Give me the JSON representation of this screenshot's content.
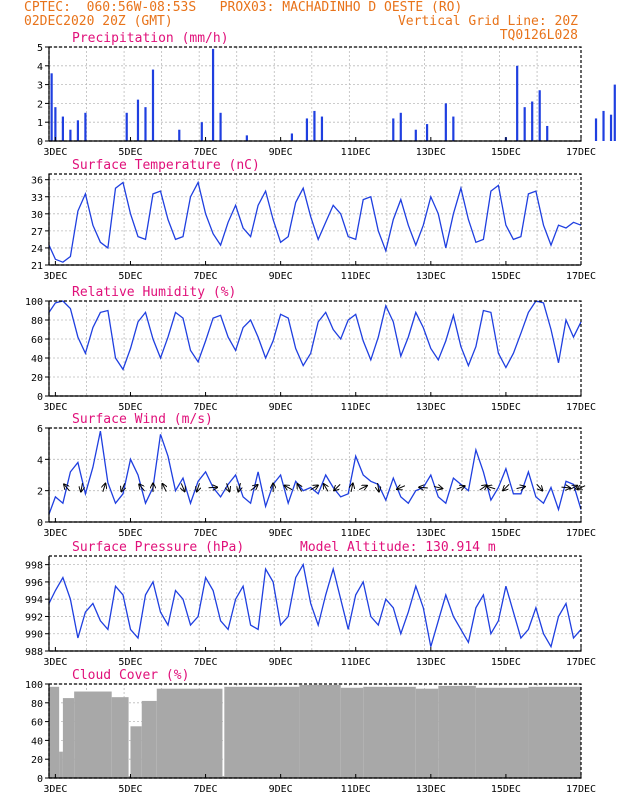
{
  "header": {
    "line1_left": "CPTEC:  060:56W-08:53S   PROX03: MACHADINHO D OESTE (RO)",
    "line2_left": "02DEC2020 20Z (GMT)",
    "line2_right": "Vertical Grid Line: 20Z",
    "line3_right": "TQ0126L028"
  },
  "colors": {
    "header": "#e8731a",
    "title": "#e0107a",
    "series": "#1f3fe0",
    "cloud": "#a8a8a8",
    "grid": "#bbbbbb"
  },
  "x_tick_labels": [
    "3DEC",
    "5DEC",
    "7DEC",
    "9DEC",
    "11DEC",
    "13DEC",
    "15DEC",
    "17DEC"
  ],
  "chart_data": [
    {
      "type": "bar",
      "title": "Precipitation (mm/h)",
      "ylim": [
        0,
        5
      ],
      "yticks": [
        "0",
        "1",
        "2",
        "3",
        "4",
        "5"
      ],
      "x_range": [
        "02DEC2020 20Z",
        "17DEC2020 00Z"
      ],
      "events": [
        {
          "day": 2.9,
          "value": 3.6
        },
        {
          "day": 3.0,
          "value": 1.8
        },
        {
          "day": 3.2,
          "value": 1.3
        },
        {
          "day": 3.4,
          "value": 0.6
        },
        {
          "day": 3.6,
          "value": 1.1
        },
        {
          "day": 3.8,
          "value": 1.5
        },
        {
          "day": 4.9,
          "value": 1.5
        },
        {
          "day": 5.2,
          "value": 2.2
        },
        {
          "day": 5.4,
          "value": 1.8
        },
        {
          "day": 5.6,
          "value": 3.8
        },
        {
          "day": 6.3,
          "value": 0.6
        },
        {
          "day": 6.9,
          "value": 1.0
        },
        {
          "day": 7.2,
          "value": 4.9
        },
        {
          "day": 7.4,
          "value": 1.5
        },
        {
          "day": 8.1,
          "value": 0.3
        },
        {
          "day": 9.3,
          "value": 0.4
        },
        {
          "day": 9.7,
          "value": 1.2
        },
        {
          "day": 9.9,
          "value": 1.6
        },
        {
          "day": 10.1,
          "value": 1.3
        },
        {
          "day": 12.0,
          "value": 1.2
        },
        {
          "day": 12.2,
          "value": 1.5
        },
        {
          "day": 12.6,
          "value": 0.6
        },
        {
          "day": 12.9,
          "value": 0.9
        },
        {
          "day": 13.4,
          "value": 2.0
        },
        {
          "day": 13.6,
          "value": 1.3
        },
        {
          "day": 15.0,
          "value": 0.2
        },
        {
          "day": 15.3,
          "value": 4.0
        },
        {
          "day": 15.5,
          "value": 1.8
        },
        {
          "day": 15.7,
          "value": 2.1
        },
        {
          "day": 15.9,
          "value": 2.7
        },
        {
          "day": 16.1,
          "value": 0.8
        },
        {
          "day": 17.4,
          "value": 1.2
        },
        {
          "day": 17.6,
          "value": 1.6
        },
        {
          "day": 17.8,
          "value": 1.4
        },
        {
          "day": 17.9,
          "value": 3.0
        }
      ]
    },
    {
      "type": "line",
      "title": "Surface Temperature (nC)",
      "ylim": [
        21,
        37
      ],
      "yticks": [
        "21",
        "24",
        "27",
        "30",
        "33",
        "36"
      ],
      "x": [
        2.83,
        3.0,
        3.2,
        3.4,
        3.6,
        3.8,
        4.0,
        4.2,
        4.4,
        4.6,
        4.8,
        5.0,
        5.2,
        5.4,
        5.6,
        5.8,
        6.0,
        6.2,
        6.4,
        6.6,
        6.8,
        7.0,
        7.2,
        7.4,
        7.6,
        7.8,
        8.0,
        8.2,
        8.4,
        8.6,
        8.8,
        9.0,
        9.2,
        9.4,
        9.6,
        9.8,
        10.0,
        10.2,
        10.4,
        10.6,
        10.8,
        11.0,
        11.2,
        11.4,
        11.6,
        11.8,
        12.0,
        12.2,
        12.4,
        12.6,
        12.8,
        13.0,
        13.2,
        13.4,
        13.6,
        13.8,
        14.0,
        14.2,
        14.4,
        14.6,
        14.8,
        15.0,
        15.2,
        15.4,
        15.6,
        15.8,
        16.0,
        16.2,
        16.4,
        16.6,
        16.8,
        17.0
      ],
      "series": [
        {
          "values": [
            24.5,
            22.0,
            21.5,
            22.5,
            30.5,
            33.5,
            28.0,
            25.0,
            24.0,
            34.5,
            35.5,
            30.0,
            26.0,
            25.5,
            33.5,
            34.0,
            29.0,
            25.5,
            26.0,
            33.0,
            35.5,
            30.0,
            26.5,
            24.5,
            28.5,
            31.5,
            27.5,
            26.0,
            31.5,
            34.0,
            29.0,
            25.0,
            26.0,
            32.0,
            34.5,
            29.5,
            25.5,
            28.5,
            31.5,
            30.0,
            26.0,
            25.5,
            32.5,
            33.0,
            27.0,
            23.5,
            29.0,
            32.5,
            28.0,
            24.5,
            28.0,
            33.0,
            30.0,
            24.0,
            30.0,
            34.5,
            29.0,
            25.0,
            25.5,
            34.0,
            35.0,
            28.0,
            25.5,
            26.0,
            33.5,
            34.0,
            28.0,
            24.5,
            28.0,
            27.5,
            28.5,
            28.0
          ]
        }
      ]
    },
    {
      "type": "line",
      "title": "Relative Humidity (%)",
      "ylim": [
        0,
        100
      ],
      "yticks": [
        "0",
        "20",
        "40",
        "60",
        "80",
        "100"
      ],
      "x": [
        2.83,
        3.0,
        3.2,
        3.4,
        3.6,
        3.8,
        4.0,
        4.2,
        4.4,
        4.6,
        4.8,
        5.0,
        5.2,
        5.4,
        5.6,
        5.8,
        6.0,
        6.2,
        6.4,
        6.6,
        6.8,
        7.0,
        7.2,
        7.4,
        7.6,
        7.8,
        8.0,
        8.2,
        8.4,
        8.6,
        8.8,
        9.0,
        9.2,
        9.4,
        9.6,
        9.8,
        10.0,
        10.2,
        10.4,
        10.6,
        10.8,
        11.0,
        11.2,
        11.4,
        11.6,
        11.8,
        12.0,
        12.2,
        12.4,
        12.6,
        12.8,
        13.0,
        13.2,
        13.4,
        13.6,
        13.8,
        14.0,
        14.2,
        14.4,
        14.6,
        14.8,
        15.0,
        15.2,
        15.4,
        15.6,
        15.8,
        16.0,
        16.2,
        16.4,
        16.6,
        16.8,
        17.0
      ],
      "series": [
        {
          "values": [
            88,
            98,
            100,
            92,
            62,
            45,
            72,
            88,
            90,
            40,
            28,
            50,
            78,
            88,
            60,
            40,
            62,
            88,
            82,
            48,
            36,
            58,
            82,
            85,
            62,
            48,
            72,
            80,
            62,
            40,
            58,
            86,
            82,
            50,
            32,
            45,
            78,
            88,
            70,
            60,
            80,
            86,
            58,
            38,
            62,
            95,
            78,
            42,
            62,
            88,
            72,
            50,
            38,
            58,
            85,
            52,
            32,
            52,
            90,
            88,
            45,
            30,
            45,
            66,
            88,
            100,
            98,
            70,
            35,
            80,
            62,
            78
          ]
        }
      ]
    },
    {
      "type": "line",
      "title": "Surface Wind (m/s)",
      "ylim": [
        0,
        6
      ],
      "yticks": [
        "0",
        "2",
        "4",
        "6"
      ],
      "x": [
        2.83,
        3.0,
        3.2,
        3.4,
        3.6,
        3.8,
        4.0,
        4.2,
        4.4,
        4.6,
        4.8,
        5.0,
        5.2,
        5.4,
        5.6,
        5.8,
        6.0,
        6.2,
        6.4,
        6.6,
        6.8,
        7.0,
        7.2,
        7.4,
        7.6,
        7.8,
        8.0,
        8.2,
        8.4,
        8.6,
        8.8,
        9.0,
        9.2,
        9.4,
        9.6,
        9.8,
        10.0,
        10.2,
        10.4,
        10.6,
        10.8,
        11.0,
        11.2,
        11.4,
        11.6,
        11.8,
        12.0,
        12.2,
        12.4,
        12.6,
        12.8,
        13.0,
        13.2,
        13.4,
        13.6,
        13.8,
        14.0,
        14.2,
        14.4,
        14.6,
        14.8,
        15.0,
        15.2,
        15.4,
        15.6,
        15.8,
        16.0,
        16.2,
        16.4,
        16.6,
        16.8,
        17.0
      ],
      "series": [
        {
          "values": [
            0.5,
            1.6,
            1.2,
            3.2,
            3.8,
            1.8,
            3.5,
            5.8,
            2.5,
            1.2,
            1.8,
            4.0,
            3.0,
            1.2,
            2.2,
            5.6,
            4.2,
            2.0,
            2.8,
            1.2,
            2.6,
            3.2,
            2.2,
            1.6,
            2.4,
            3.0,
            1.6,
            1.2,
            3.2,
            1.0,
            2.4,
            3.0,
            1.2,
            2.6,
            2.0,
            2.2,
            1.8,
            3.0,
            2.2,
            1.6,
            1.8,
            4.2,
            3.0,
            2.6,
            2.4,
            1.4,
            2.8,
            1.6,
            1.2,
            2.0,
            2.2,
            3.0,
            1.6,
            1.2,
            2.8,
            2.4,
            2.0,
            4.6,
            3.2,
            1.4,
            2.2,
            3.4,
            1.8,
            1.8,
            3.2,
            1.6,
            1.2,
            2.2,
            0.8,
            2.6,
            2.4,
            0.8
          ]
        }
      ],
      "arrows": [
        {
          "day": 3.3,
          "u": -1,
          "v": 1.2
        },
        {
          "day": 3.7,
          "u": -0.4,
          "v": -2.2
        },
        {
          "day": 4.3,
          "u": 0.5,
          "v": 1.6
        },
        {
          "day": 4.8,
          "u": -0.5,
          "v": -1.2
        },
        {
          "day": 5.3,
          "u": -0.8,
          "v": 1.0
        },
        {
          "day": 5.6,
          "u": 0,
          "v": 1.6
        },
        {
          "day": 5.9,
          "u": -0.6,
          "v": 1.2
        },
        {
          "day": 6.4,
          "u": 0.9,
          "v": -2.1
        },
        {
          "day": 6.8,
          "u": -0.5,
          "v": -1.5
        },
        {
          "day": 7.2,
          "u": 1.8,
          "v": 0.1
        },
        {
          "day": 7.6,
          "u": 0.5,
          "v": -1.4
        },
        {
          "day": 7.9,
          "u": -0.4,
          "v": -1.6
        },
        {
          "day": 8.3,
          "u": 1.0,
          "v": 0.8
        },
        {
          "day": 8.8,
          "u": 0,
          "v": 1.8
        },
        {
          "day": 9.2,
          "u": -0.9,
          "v": 0.5
        },
        {
          "day": 9.5,
          "u": -0.5,
          "v": 0.9
        },
        {
          "day": 9.9,
          "u": 1.0,
          "v": 0.6
        },
        {
          "day": 10.2,
          "u": -0.6,
          "v": 1.0
        },
        {
          "day": 10.5,
          "u": -0.8,
          "v": -0.8
        },
        {
          "day": 10.9,
          "u": 0.3,
          "v": 1.4
        },
        {
          "day": 11.2,
          "u": 1.2,
          "v": 0.6
        },
        {
          "day": 11.6,
          "u": 0.2,
          "v": -1.2
        },
        {
          "day": 12.2,
          "u": -0.9,
          "v": -0.4
        },
        {
          "day": 12.8,
          "u": -1.0,
          "v": 0.1
        },
        {
          "day": 13.2,
          "u": 1.2,
          "v": -0.3
        },
        {
          "day": 13.8,
          "u": 1.0,
          "v": 0.4
        },
        {
          "day": 14.4,
          "u": 1.0,
          "v": 0.7
        },
        {
          "day": 14.6,
          "u": -1.6,
          "v": 0.5
        },
        {
          "day": 15.0,
          "u": -0.6,
          "v": -0.6
        },
        {
          "day": 15.4,
          "u": 0.8,
          "v": 0.2
        },
        {
          "day": 15.9,
          "u": 0.8,
          "v": -0.9
        },
        {
          "day": 16.6,
          "u": 1.0,
          "v": -0.1
        },
        {
          "day": 16.8,
          "u": 1.0,
          "v": 0.5
        },
        {
          "day": 17.0,
          "u": -0.9,
          "v": -0.4
        }
      ]
    },
    {
      "type": "line",
      "title": "Surface Pressure (hPa)",
      "annotation": "Model Altitude: 130.914 m",
      "ylim": [
        988,
        999
      ],
      "yticks": [
        "988",
        "990",
        "992",
        "994",
        "996",
        "998"
      ],
      "x": [
        2.83,
        3.0,
        3.2,
        3.4,
        3.6,
        3.8,
        4.0,
        4.2,
        4.4,
        4.6,
        4.8,
        5.0,
        5.2,
        5.4,
        5.6,
        5.8,
        6.0,
        6.2,
        6.4,
        6.6,
        6.8,
        7.0,
        7.2,
        7.4,
        7.6,
        7.8,
        8.0,
        8.2,
        8.4,
        8.6,
        8.8,
        9.0,
        9.2,
        9.4,
        9.6,
        9.8,
        10.0,
        10.2,
        10.4,
        10.6,
        10.8,
        11.0,
        11.2,
        11.4,
        11.6,
        11.8,
        12.0,
        12.2,
        12.4,
        12.6,
        12.8,
        13.0,
        13.2,
        13.4,
        13.6,
        13.8,
        14.0,
        14.2,
        14.4,
        14.6,
        14.8,
        15.0,
        15.2,
        15.4,
        15.6,
        15.8,
        16.0,
        16.2,
        16.4,
        16.6,
        16.8,
        17.0
      ],
      "series": [
        {
          "values": [
            993.5,
            995.0,
            996.5,
            994.0,
            989.5,
            992.5,
            993.5,
            991.5,
            990.5,
            995.5,
            994.5,
            990.5,
            989.5,
            994.5,
            996.0,
            992.5,
            991.0,
            995.0,
            994.0,
            991.0,
            992.0,
            996.5,
            995.0,
            991.5,
            990.5,
            994.0,
            995.5,
            991.0,
            990.5,
            997.5,
            996.0,
            991.0,
            992.0,
            996.5,
            998.0,
            993.5,
            991.0,
            994.5,
            997.5,
            994.0,
            990.5,
            994.5,
            996.0,
            992.0,
            991.0,
            994.0,
            993.0,
            990.0,
            992.5,
            995.5,
            993.0,
            988.5,
            991.5,
            994.5,
            992.0,
            990.5,
            989.0,
            993.0,
            994.5,
            990.0,
            991.5,
            995.5,
            992.5,
            989.5,
            990.5,
            993.0,
            990.0,
            988.5,
            992.0,
            993.5,
            989.5,
            990.5
          ]
        }
      ]
    },
    {
      "type": "bar",
      "title": "Cloud Cover (%)",
      "ylim": [
        0,
        100
      ],
      "yticks": [
        "0",
        "20",
        "40",
        "60",
        "80",
        "100"
      ],
      "x_range": [
        "02DEC2020 20Z",
        "17DEC2020 00Z"
      ],
      "segments": [
        {
          "from": 2.83,
          "to": 3.1,
          "value": 97
        },
        {
          "from": 3.1,
          "to": 3.2,
          "value": 28
        },
        {
          "from": 3.2,
          "to": 3.5,
          "value": 85
        },
        {
          "from": 3.5,
          "to": 4.5,
          "value": 92
        },
        {
          "from": 4.5,
          "to": 4.95,
          "value": 86
        },
        {
          "from": 4.95,
          "to": 5.0,
          "value": 2
        },
        {
          "from": 5.0,
          "to": 5.3,
          "value": 55
        },
        {
          "from": 5.3,
          "to": 5.7,
          "value": 82
        },
        {
          "from": 5.7,
          "to": 7.45,
          "value": 95
        },
        {
          "from": 7.45,
          "to": 7.5,
          "value": 2
        },
        {
          "from": 7.5,
          "to": 9.5,
          "value": 97
        },
        {
          "from": 9.5,
          "to": 10.6,
          "value": 99
        },
        {
          "from": 10.6,
          "to": 11.2,
          "value": 96
        },
        {
          "from": 11.2,
          "to": 12.6,
          "value": 97
        },
        {
          "from": 12.6,
          "to": 13.2,
          "value": 95
        },
        {
          "from": 13.2,
          "to": 14.2,
          "value": 98
        },
        {
          "from": 14.2,
          "to": 15.6,
          "value": 96
        },
        {
          "from": 15.6,
          "to": 17.0,
          "value": 97
        }
      ]
    }
  ]
}
